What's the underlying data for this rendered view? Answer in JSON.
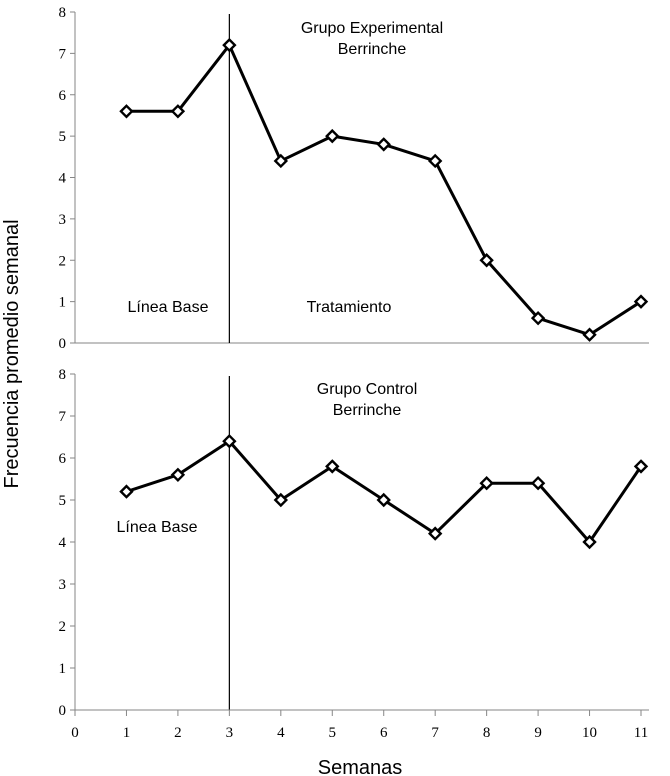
{
  "chart_data": [
    {
      "type": "line",
      "title": "Grupo Experimental Berrinche",
      "title_lines": [
        "Grupo Experimental",
        "Berrinche"
      ],
      "x": [
        1,
        2,
        3,
        4,
        5,
        6,
        7,
        8,
        9,
        10,
        11
      ],
      "y": [
        5.6,
        5.6,
        7.2,
        4.4,
        5.0,
        4.8,
        4.4,
        2.0,
        0.6,
        0.2,
        1.0
      ],
      "ylim": [
        0,
        8
      ],
      "yticks": [
        "0",
        "1",
        "2",
        "3",
        "4",
        "5",
        "6",
        "7",
        "8"
      ],
      "phase_line_x": 3,
      "annotations": [
        "Línea Base",
        "Tratamiento"
      ]
    },
    {
      "type": "line",
      "title": "Grupo Control Berrinche",
      "title_lines": [
        "Grupo Control",
        "Berrinche"
      ],
      "x": [
        1,
        2,
        3,
        4,
        5,
        6,
        7,
        8,
        9,
        10,
        11
      ],
      "y": [
        5.2,
        5.6,
        6.4,
        5.0,
        5.8,
        5.0,
        4.2,
        5.4,
        5.4,
        4.0,
        5.8
      ],
      "ylim": [
        0,
        8
      ],
      "yticks": [
        "0",
        "1",
        "2",
        "3",
        "4",
        "5",
        "6",
        "7",
        "8"
      ],
      "phase_line_x": 3,
      "annotations": [
        "Línea Base"
      ]
    }
  ],
  "shared": {
    "xlabel": "Semanas",
    "ylabel": "Frecuencia promedio semanal",
    "xlim": [
      0,
      11
    ],
    "xticks": [
      "0",
      "1",
      "2",
      "3",
      "4",
      "5",
      "6",
      "7",
      "8",
      "9",
      "10",
      "11"
    ]
  },
  "colors": {
    "line": "#000000",
    "marker_fill": "#ffffff",
    "axis": "#868686"
  }
}
